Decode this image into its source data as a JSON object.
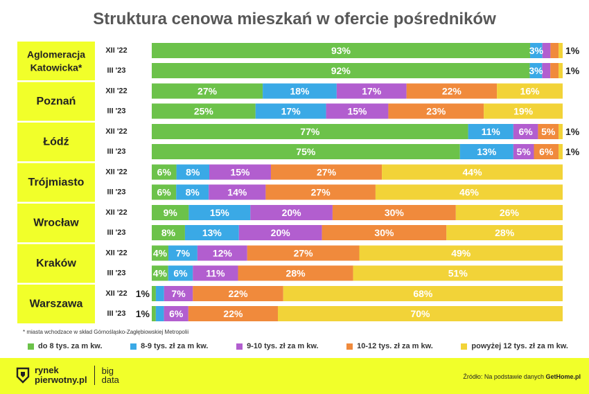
{
  "title": "Struktura cenowa mieszkań w ofercie pośredników",
  "footnote": "* miasta wchodzace w skład Górnośląsko-Zagłębiowskiej Metropolii",
  "legend": [
    {
      "label": "do 8 tys. za m kw.",
      "color": "#6cc24a"
    },
    {
      "label": "8-9 tys. zł za m kw.",
      "color": "#3aa9e6"
    },
    {
      "label": "9-10 tys. zł za m kw.",
      "color": "#b25ecf"
    },
    {
      "label": "10-12 tys. zł za m kw.",
      "color": "#f08a3c"
    },
    {
      "label": "powyżej 12 tys. zł za m kw.",
      "color": "#f2d338"
    }
  ],
  "footer": {
    "logo_line1": "rynek",
    "logo_line2": "pierwotny.pl",
    "logo_big_line1": "big",
    "logo_big_line2": "data",
    "source_prefix": "Źródło: Na podstawie danych",
    "source_name": "GetHome.pl"
  },
  "chart_data": {
    "type": "bar",
    "orientation": "horizontal",
    "stacked": true,
    "normalized": true,
    "title": "Struktura cenowa mieszkań w ofercie pośredników",
    "series_names": [
      "do 8 tys. za m kw.",
      "8-9 tys. zł za m kw.",
      "9-10 tys. zł za m kw.",
      "10-12 tys. zł za m kw.",
      "powyżej 12 tys. zł za m kw."
    ],
    "groups": [
      {
        "city": "Aglomeracja Katowicka*",
        "city_lines": [
          "Aglomeracja",
          "Katowicka*"
        ],
        "rows": [
          {
            "period": "XII '22",
            "values": [
              93,
              3,
              2,
              2,
              1
            ]
          },
          {
            "period": "III '23",
            "values": [
              92,
              3,
              2,
              2,
              1
            ]
          }
        ]
      },
      {
        "city": "Poznań",
        "city_lines": [
          "Poznań"
        ],
        "rows": [
          {
            "period": "XII '22",
            "values": [
              27,
              18,
              17,
              22,
              16
            ]
          },
          {
            "period": "III '23",
            "values": [
              25,
              17,
              15,
              23,
              19
            ]
          }
        ]
      },
      {
        "city": "Łódź",
        "city_lines": [
          "Łódź"
        ],
        "rows": [
          {
            "period": "XII '22",
            "values": [
              77,
              11,
              6,
              5,
              1
            ]
          },
          {
            "period": "III '23",
            "values": [
              75,
              13,
              5,
              6,
              1
            ]
          }
        ]
      },
      {
        "city": "Trójmiasto",
        "city_lines": [
          "Trójmiasto"
        ],
        "rows": [
          {
            "period": "XII '22",
            "values": [
              6,
              8,
              15,
              27,
              44
            ]
          },
          {
            "period": "III '23",
            "values": [
              6,
              8,
              14,
              27,
              46
            ]
          }
        ]
      },
      {
        "city": "Wrocław",
        "city_lines": [
          "Wrocław"
        ],
        "rows": [
          {
            "period": "XII '22",
            "values": [
              9,
              15,
              20,
              30,
              26
            ]
          },
          {
            "period": "III '23",
            "values": [
              8,
              13,
              20,
              30,
              28
            ]
          }
        ]
      },
      {
        "city": "Kraków",
        "city_lines": [
          "Kraków"
        ],
        "rows": [
          {
            "period": "XII '22",
            "values": [
              4,
              7,
              12,
              27,
              49
            ]
          },
          {
            "period": "III '23",
            "values": [
              4,
              6,
              11,
              28,
              51
            ]
          }
        ]
      },
      {
        "city": "Warszawa",
        "city_lines": [
          "Warszawa"
        ],
        "rows": [
          {
            "period": "XII '22",
            "values": [
              1,
              2,
              7,
              22,
              68
            ]
          },
          {
            "period": "III '23",
            "values": [
              1,
              2,
              6,
              22,
              70
            ]
          }
        ]
      }
    ]
  }
}
